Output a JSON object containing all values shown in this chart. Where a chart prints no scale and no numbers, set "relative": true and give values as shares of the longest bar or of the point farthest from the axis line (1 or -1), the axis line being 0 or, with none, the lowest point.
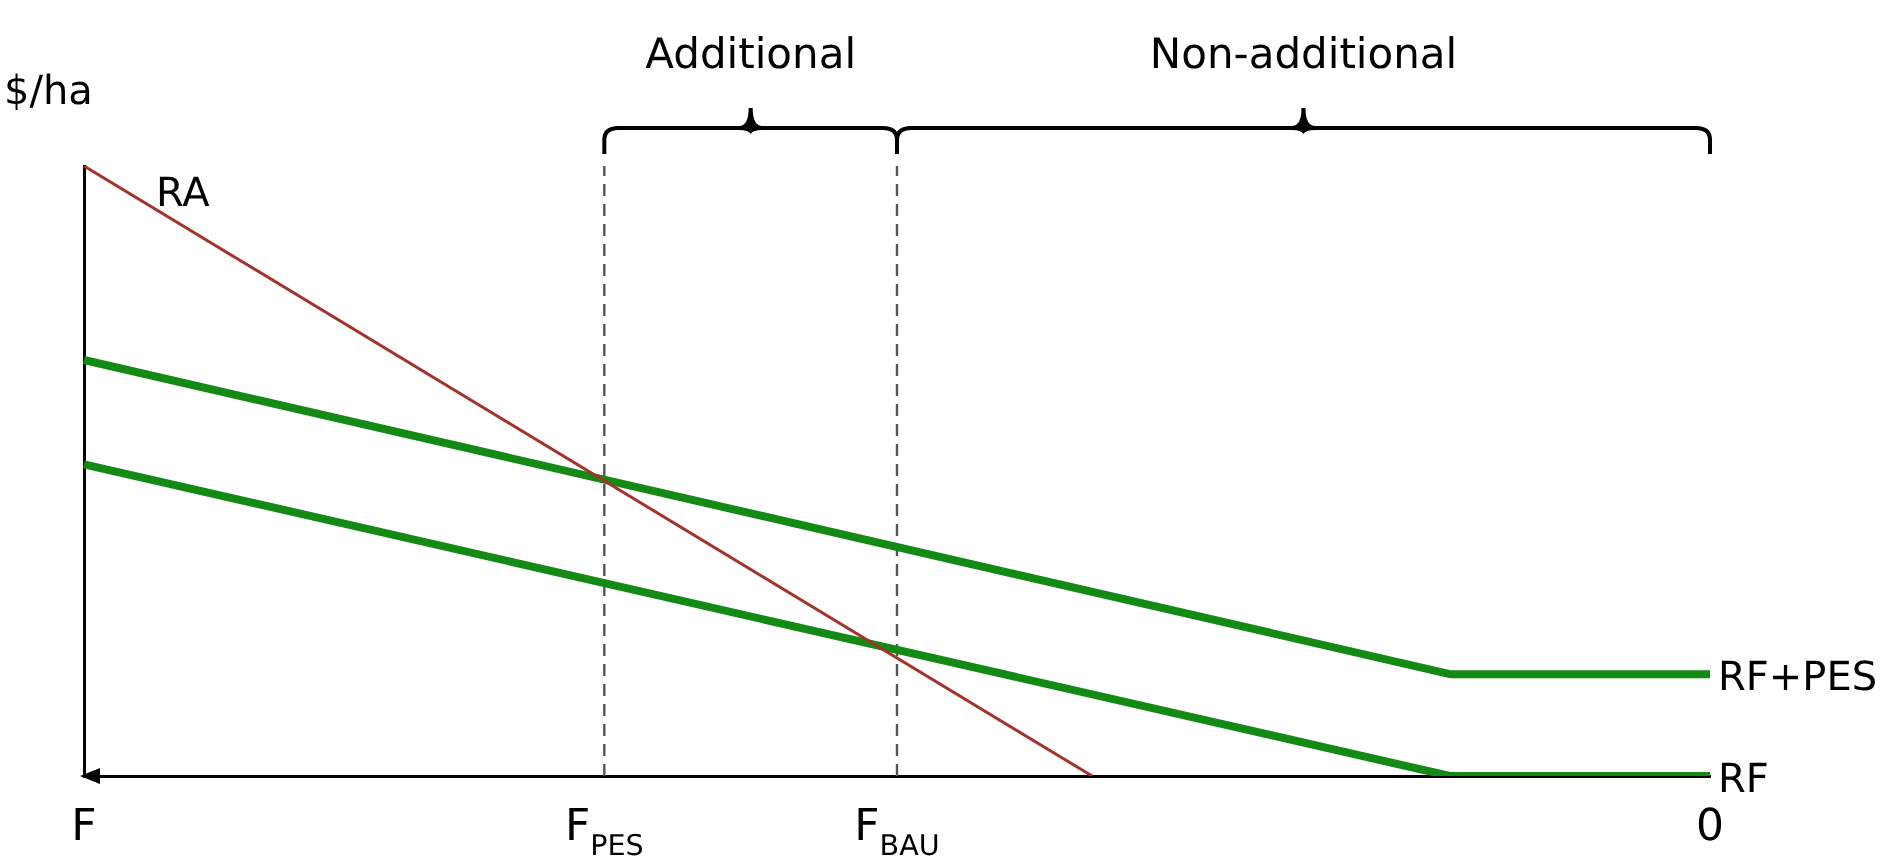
{
  "chart_data": {
    "type": "line",
    "relative": true,
    "ylabel": "$/ha",
    "categories": [
      "F",
      null,
      null,
      null,
      null,
      null,
      null,
      null,
      null,
      null,
      null,
      null,
      null,
      null,
      null,
      null,
      "F$_{PES}$",
      null,
      null,
      null,
      null,
      null,
      null,
      null,
      null,
      "F$_{BAU}$",
      null,
      null,
      null,
      null,
      null,
      null,
      null,
      null,
      null,
      null,
      null,
      null,
      null,
      null,
      null,
      null,
      null,
      null,
      null,
      null,
      null,
      null,
      null,
      null,
      "0"
    ],
    "series": [
      {
        "name": "RA",
        "color": "#a3332b",
        "values": [
          1,
          null,
          null,
          null,
          null,
          null,
          null,
          null,
          null,
          null,
          null,
          null,
          null,
          null,
          null,
          null,
          null,
          null,
          null,
          null,
          null,
          null,
          null,
          null,
          null,
          null,
          null,
          null,
          null,
          null,
          null,
          0,
          null,
          null,
          null,
          null,
          null,
          null,
          null,
          null,
          null,
          null,
          null,
          null,
          null,
          null,
          null,
          null,
          null,
          null,
          null
        ]
      },
      {
        "name": "RF+PES",
        "color": "#138a13",
        "values": [
          0.682,
          null,
          null,
          null,
          null,
          null,
          null,
          null,
          null,
          null,
          null,
          null,
          null,
          null,
          null,
          null,
          null,
          null,
          null,
          null,
          null,
          null,
          null,
          null,
          null,
          null,
          null,
          null,
          null,
          null,
          null,
          null,
          null,
          null,
          null,
          null,
          null,
          null,
          null,
          null,
          null,
          null,
          0.167,
          null,
          null,
          null,
          null,
          null,
          null,
          null,
          0.167
        ]
      },
      {
        "name": "RF",
        "color": "#138a13",
        "values": [
          0.511,
          null,
          null,
          null,
          null,
          null,
          null,
          null,
          null,
          null,
          null,
          null,
          null,
          null,
          null,
          null,
          null,
          null,
          null,
          null,
          null,
          null,
          null,
          null,
          null,
          null,
          null,
          null,
          null,
          null,
          null,
          null,
          null,
          null,
          null,
          null,
          null,
          null,
          null,
          null,
          null,
          null,
          0,
          null,
          null,
          null,
          null,
          null,
          null,
          null,
          0
        ]
      }
    ],
    "ref_lines": [
      {
        "axis": "x",
        "value": "F$_{PES}$",
        "color": "#555555",
        "line_style": "dashed"
      },
      {
        "axis": "x",
        "value": "F$_{BAU}$",
        "color": "#555555",
        "line_style": "dashed"
      }
    ],
    "annotations": [
      "Additional",
      "Non-additional"
    ],
    "grid": false,
    "legend": false,
    "marker": "none",
    "line_style": "solid"
  }
}
